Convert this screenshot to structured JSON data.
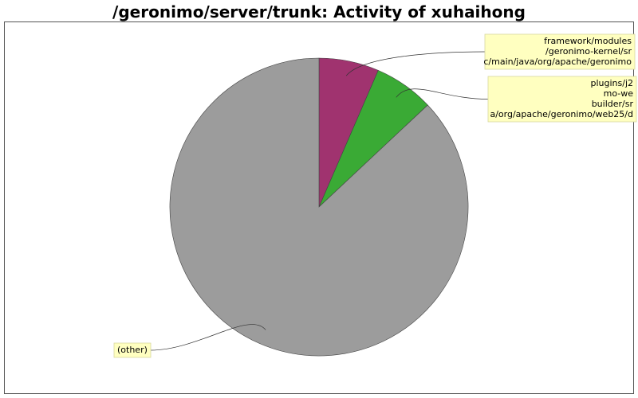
{
  "chart_data": {
    "type": "pie",
    "title": "/geronimo/server/trunk: Activity of xuhaihong",
    "slices": [
      {
        "label_lines": [
          "framework/modules",
          "/geronimo-kernel/sr",
          "c/main/java/org/apache/geronimo"
        ],
        "value": 6.5,
        "color": "#a0336f"
      },
      {
        "label_lines": [
          "plugins/j2",
          "mo-we",
          "builder/sr",
          "a/org/apache/geronimo/web25/d"
        ],
        "value": 6.5,
        "color": "#3aaa35"
      },
      {
        "label_lines": [
          "(other)"
        ],
        "value": 87.0,
        "color": "#9c9c9c"
      }
    ],
    "legend": "none"
  }
}
